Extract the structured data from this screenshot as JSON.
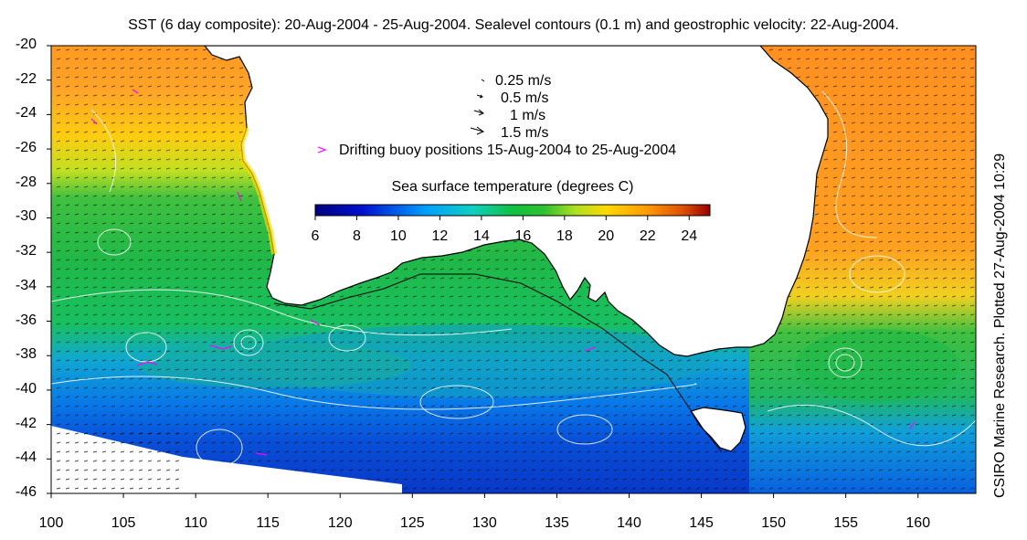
{
  "title": "SST (6 day composite): 20-Aug-2004 - 25-Aug-2004. Sealevel contours (0.1 m) and geostrophic velocity: 22-Aug-2004.",
  "credit": "CSIRO Marine Research. Plotted 27-Aug-2004 10:29",
  "axes": {
    "x_ticks": [
      "100",
      "105",
      "110",
      "115",
      "120",
      "125",
      "130",
      "135",
      "140",
      "145",
      "150",
      "155",
      "160"
    ],
    "y_ticks": [
      "-20",
      "-22",
      "-24",
      "-26",
      "-28",
      "-30",
      "-32",
      "-34",
      "-36",
      "-38",
      "-40",
      "-42",
      "-44",
      "-46"
    ],
    "x_range": [
      100,
      164
    ],
    "y_range": [
      -46,
      -20
    ]
  },
  "legend": {
    "velocity_scale": [
      {
        "label": "0.25 m/s",
        "speed": 0.25
      },
      {
        "label": "0.5 m/s",
        "speed": 0.5
      },
      {
        "label": "1 m/s",
        "speed": 1
      },
      {
        "label": "1.5 m/s",
        "speed": 1.5
      }
    ],
    "buoy_label": "Drifting buoy positions 15-Aug-2004 to 25-Aug-2004",
    "buoy_color": "#ff00ff"
  },
  "colorbar": {
    "title": "Sea surface temperature (degrees C)",
    "ticks": [
      "6",
      "8",
      "10",
      "12",
      "14",
      "16",
      "18",
      "20",
      "22",
      "24"
    ],
    "range": [
      6,
      25
    ]
  },
  "colors": {
    "land": "#ffffff",
    "coast": "#000000",
    "contours": "#ffffff",
    "arrows": "#000000"
  }
}
